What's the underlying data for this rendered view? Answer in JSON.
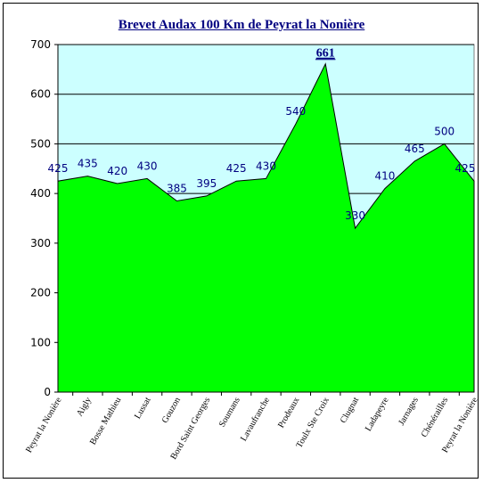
{
  "chart_data": {
    "type": "area",
    "title": "Brevet Audax 100 Km de Peyrat la Nonière",
    "xlabel": "",
    "ylabel": "",
    "ylim": [
      0,
      700
    ],
    "yticks": [
      0,
      100,
      200,
      300,
      400,
      500,
      600,
      700
    ],
    "grid": true,
    "categories": [
      "Peyrat la Nonière",
      "Aigly",
      "Bosse Mathieu",
      "Lussat",
      "Gouzon",
      "Bord Saint Georges",
      "Soumans",
      "Lavaufranche",
      "Prodeaux",
      "Toulx Ste Croix",
      "Clugnat",
      "Ladapeyre",
      "Jarnages",
      "Chénérailles",
      "Peyrat la Nonière"
    ],
    "values": [
      425,
      435,
      420,
      430,
      385,
      395,
      425,
      430,
      540,
      661,
      330,
      410,
      465,
      500,
      425
    ],
    "data_labels": [
      "425",
      "435",
      "420",
      "430",
      "385",
      "395",
      "425",
      "430",
      "540",
      "661",
      "330",
      "410",
      "465",
      "500",
      "425"
    ],
    "colors": {
      "fill": "#00ff00",
      "plot_background": "#ccffff",
      "labels": "#000080"
    }
  }
}
